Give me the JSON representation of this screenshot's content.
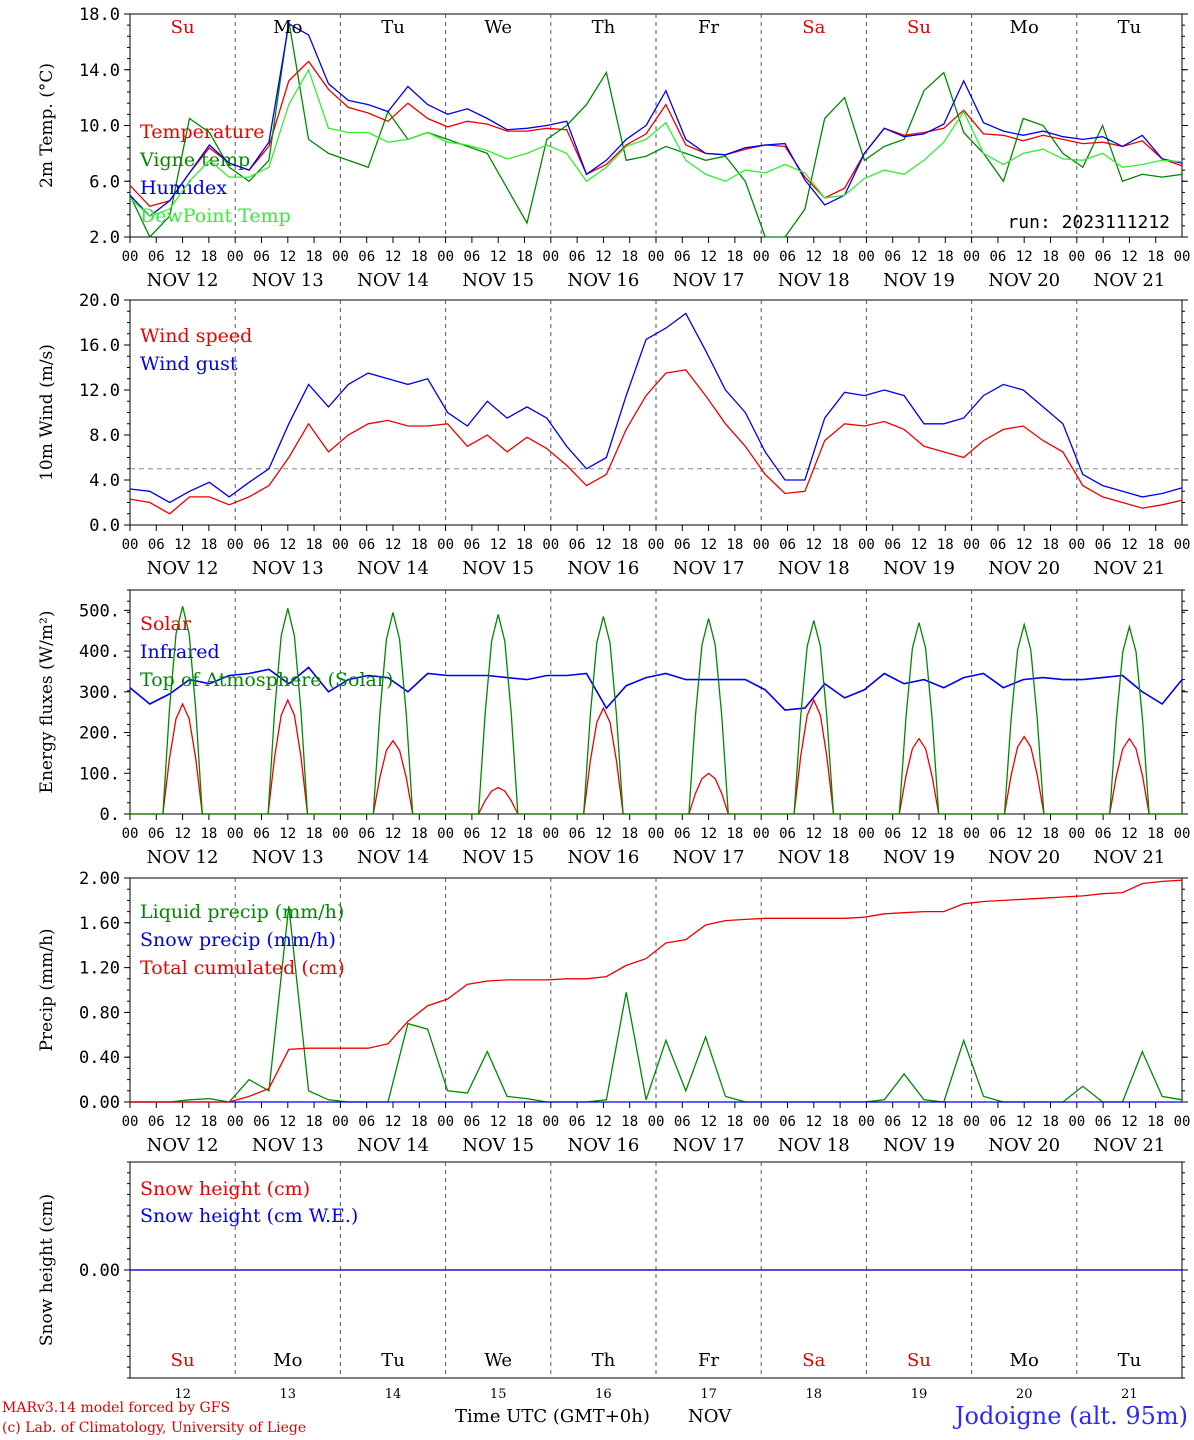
{
  "run_label": "run: 2023111212",
  "footer": {
    "credit_line1": "MARv3.14 model forced by GFS",
    "credit_line2": "(c) Lab. of Climatology, University of Liege",
    "x_title": "Time UTC (GMT+0h)",
    "month": "NOV",
    "station": "Jodoigne (alt. 95m)"
  },
  "days": {
    "date_labels": [
      "NOV 12",
      "NOV 13",
      "NOV 14",
      "NOV 15",
      "NOV 16",
      "NOV 17",
      "NOV 18",
      "NOV 19",
      "NOV 20",
      "NOV 21"
    ],
    "weekday_labels": [
      "Su",
      "Mo",
      "Tu",
      "We",
      "Th",
      "Fr",
      "Sa",
      "Su",
      "Mo",
      "Tu"
    ],
    "weekday_colors": [
      "#e00000",
      "#000000",
      "#000000",
      "#000000",
      "#000000",
      "#000000",
      "#e00000",
      "#e00000",
      "#000000",
      "#000000"
    ],
    "day_numbers": [
      "12",
      "13",
      "14",
      "15",
      "16",
      "17",
      "18",
      "19",
      "20",
      "21"
    ],
    "hour_ticks": [
      "00",
      "06",
      "12",
      "18"
    ],
    "final_tick": "00"
  },
  "colors": {
    "red": "#ee0000",
    "blue": "#0000ee",
    "green": "#008800",
    "lightgreen": "#33ee33",
    "grid": "#666666"
  },
  "chart_data": [
    {
      "type": "line",
      "ylabel": "2m Temp. (°C)",
      "ylim": [
        2,
        18
      ],
      "yticks": [
        "2.0",
        "6.0",
        "10.0",
        "14.0",
        "18.0"
      ],
      "x_hours_step": 6,
      "series": [
        {
          "name": "Temperature",
          "color": "#ee0000",
          "values": [
            5.7,
            4.2,
            4.6,
            6.6,
            8.4,
            7.3,
            6.8,
            8.5,
            13.2,
            14.6,
            12.6,
            11.3,
            10.9,
            10.3,
            11.6,
            10.5,
            9.9,
            10.3,
            10.1,
            9.6,
            9.6,
            9.8,
            9.7,
            6.5,
            7.2,
            8.6,
            9.4,
            11.5,
            8.6,
            8.0,
            7.9,
            8.3,
            8.6,
            8.5,
            6.3,
            4.8,
            5.5,
            8.0,
            9.8,
            9.3,
            9.5,
            9.8,
            11.1,
            9.4,
            9.3,
            8.9,
            9.3,
            9.0,
            8.7,
            8.8,
            8.5,
            8.9,
            7.6,
            7.1
          ]
        },
        {
          "name": "Vigne temp",
          "color": "#008800",
          "values": [
            5.0,
            2.0,
            3.5,
            10.5,
            9.5,
            7.0,
            6.0,
            7.5,
            17.5,
            9.0,
            8.0,
            7.5,
            7.0,
            11.0,
            9.0,
            9.5,
            9.0,
            8.5,
            8.0,
            5.5,
            3.0,
            9.0,
            10.0,
            11.5,
            13.8,
            7.5,
            7.8,
            8.5,
            8.0,
            7.5,
            7.8,
            6.0,
            2.0,
            2.0,
            4.0,
            10.5,
            12.0,
            7.5,
            8.5,
            9.0,
            12.5,
            13.8,
            9.5,
            8.0,
            6.0,
            10.5,
            10.0,
            8.0,
            7.0,
            10.0,
            6.0,
            6.5,
            6.3,
            6.5
          ]
        },
        {
          "name": "Humidex",
          "color": "#0000ee",
          "values": [
            5.0,
            3.5,
            4.6,
            6.6,
            8.6,
            7.3,
            6.8,
            8.8,
            17.3,
            16.5,
            13.0,
            11.8,
            11.5,
            11.0,
            12.8,
            11.5,
            10.8,
            11.2,
            10.5,
            9.7,
            9.8,
            10.0,
            10.3,
            6.5,
            7.5,
            9.0,
            10.0,
            12.5,
            9.0,
            8.0,
            7.9,
            8.4,
            8.6,
            8.7,
            6.1,
            4.3,
            5.0,
            8.0,
            9.8,
            9.2,
            9.4,
            10.1,
            13.2,
            10.2,
            9.6,
            9.3,
            9.6,
            9.2,
            9.0,
            9.2,
            8.5,
            9.3,
            7.6,
            7.3
          ]
        },
        {
          "name": "DewPoint Temp",
          "color": "#33ee33",
          "values": [
            4.8,
            3.5,
            4.0,
            6.0,
            7.5,
            6.3,
            6.3,
            7.0,
            11.5,
            14.0,
            9.8,
            9.5,
            9.5,
            8.8,
            9.0,
            9.5,
            8.8,
            8.6,
            8.2,
            7.6,
            8.0,
            8.6,
            8.0,
            6.0,
            7.0,
            8.5,
            9.0,
            10.2,
            7.5,
            6.5,
            6.0,
            6.8,
            6.6,
            7.2,
            6.6,
            4.8,
            5.0,
            6.2,
            6.8,
            6.5,
            7.5,
            8.8,
            11.0,
            8.0,
            7.2,
            8.0,
            8.3,
            7.6,
            7.5,
            8.0,
            7.0,
            7.2,
            7.5,
            7.4
          ]
        }
      ]
    },
    {
      "type": "line",
      "ylabel": "10m Wind (m/s)",
      "ylim": [
        0,
        20
      ],
      "yticks": [
        "0.0",
        "4.0",
        "8.0",
        "12.0",
        "16.0",
        "20.0"
      ],
      "reference_line": 5.0,
      "x_hours_step": 6,
      "series": [
        {
          "name": "Wind speed",
          "color": "#ee0000",
          "values": [
            2.3,
            2.0,
            1.0,
            2.5,
            2.5,
            1.8,
            2.5,
            3.5,
            6.0,
            9.0,
            6.5,
            8.0,
            9.0,
            9.3,
            8.8,
            8.8,
            9.0,
            7.0,
            8.0,
            6.5,
            7.8,
            6.8,
            5.3,
            3.5,
            4.5,
            8.5,
            11.5,
            13.5,
            13.8,
            11.5,
            9.0,
            7.0,
            4.5,
            2.8,
            3.0,
            7.5,
            9.0,
            8.8,
            9.2,
            8.5,
            7.0,
            6.5,
            6.0,
            7.5,
            8.5,
            8.8,
            7.5,
            6.5,
            3.5,
            2.5,
            2.0,
            1.5,
            1.8,
            2.2
          ]
        },
        {
          "name": "Wind gust",
          "color": "#0000ee",
          "values": [
            3.2,
            3.0,
            2.0,
            3.0,
            3.8,
            2.5,
            3.8,
            5.0,
            9.0,
            12.5,
            10.5,
            12.5,
            13.5,
            13.0,
            12.5,
            13.0,
            10.0,
            8.8,
            11.0,
            9.5,
            10.5,
            9.5,
            7.0,
            5.0,
            6.0,
            11.5,
            16.5,
            17.5,
            18.8,
            15.5,
            12.0,
            10.0,
            6.5,
            4.0,
            4.0,
            9.5,
            11.8,
            11.5,
            12.0,
            11.5,
            9.0,
            9.0,
            9.5,
            11.5,
            12.5,
            12.0,
            10.5,
            9.0,
            4.5,
            3.5,
            3.0,
            2.5,
            2.8,
            3.3
          ]
        }
      ]
    },
    {
      "type": "line",
      "ylabel": "Energy fluxes (W/m²)",
      "ylim": [
        0,
        550
      ],
      "yticks": [
        "0.",
        "100.",
        "200.",
        "300.",
        "400.",
        "500."
      ],
      "x_hours_step": 3,
      "series": [
        {
          "name": "Solar",
          "color": "#ee0000",
          "pattern": "diurnal",
          "peaks": [
            270,
            280,
            180,
            65,
            260,
            100,
            280,
            185,
            190,
            185
          ]
        },
        {
          "name": "Infrared",
          "color": "#0000ee",
          "values": [
            310,
            270,
            295,
            330,
            320,
            340,
            345,
            355,
            320,
            360,
            300,
            330,
            340,
            335,
            300,
            345,
            340,
            340,
            340,
            335,
            330,
            340,
            340,
            345,
            260,
            315,
            335,
            345,
            330,
            330,
            330,
            330,
            305,
            255,
            260,
            320,
            285,
            305,
            345,
            320,
            330,
            310,
            335,
            345,
            310,
            330,
            335,
            330,
            330,
            335,
            340,
            300,
            270,
            330
          ]
        },
        {
          "name": "Top of Atmosphere (Solar)",
          "color": "#008800",
          "pattern": "diurnal",
          "peaks": [
            510,
            505,
            495,
            490,
            485,
            480,
            475,
            470,
            465,
            460
          ]
        }
      ]
    },
    {
      "type": "line",
      "ylabel": "Precip (mm/h)",
      "ylim": [
        0,
        2
      ],
      "yticks": [
        "0.00",
        "0.40",
        "0.80",
        "1.20",
        "1.60",
        "2.00"
      ],
      "x_hours_step": 6,
      "series": [
        {
          "name": "Liquid precip (mm/h)",
          "color": "#008800",
          "values": [
            0,
            0,
            0,
            0.02,
            0.03,
            0,
            0.2,
            0.1,
            1.75,
            0.1,
            0.02,
            0,
            0,
            0,
            0.7,
            0.65,
            0.1,
            0.08,
            0.45,
            0.05,
            0.03,
            0,
            0,
            0,
            0.02,
            0.98,
            0.02,
            0.55,
            0.1,
            0.58,
            0.05,
            0,
            0,
            0,
            0,
            0,
            0,
            0,
            0.02,
            0.25,
            0.02,
            0,
            0.55,
            0.05,
            0,
            0,
            0,
            0,
            0.14,
            0,
            0,
            0.45,
            0.05,
            0.02
          ]
        },
        {
          "name": "Snow precip (mm/h)",
          "color": "#0000ee",
          "values": [
            0,
            0,
            0,
            0,
            0,
            0,
            0,
            0,
            0,
            0,
            0,
            0,
            0,
            0,
            0,
            0,
            0,
            0,
            0,
            0,
            0,
            0,
            0,
            0,
            0,
            0,
            0,
            0,
            0,
            0,
            0,
            0,
            0,
            0,
            0,
            0,
            0,
            0,
            0,
            0,
            0,
            0,
            0,
            0,
            0,
            0,
            0,
            0,
            0,
            0,
            0,
            0,
            0,
            0
          ]
        },
        {
          "name": "Total cumulated (cm)",
          "color": "#ee0000",
          "values": [
            0,
            0,
            0,
            0,
            0,
            0,
            0.05,
            0.12,
            0.47,
            0.48,
            0.48,
            0.48,
            0.48,
            0.52,
            0.72,
            0.86,
            0.92,
            1.05,
            1.08,
            1.09,
            1.09,
            1.09,
            1.1,
            1.1,
            1.12,
            1.22,
            1.28,
            1.42,
            1.45,
            1.58,
            1.62,
            1.63,
            1.64,
            1.64,
            1.64,
            1.64,
            1.64,
            1.65,
            1.68,
            1.69,
            1.7,
            1.7,
            1.77,
            1.79,
            1.8,
            1.81,
            1.82,
            1.83,
            1.84,
            1.86,
            1.87,
            1.95,
            1.97,
            1.98
          ]
        }
      ]
    },
    {
      "type": "line",
      "ylabel": "Snow height (cm)",
      "ylim": [
        -1,
        1
      ],
      "yticks": [
        "0.00"
      ],
      "x_hours_step": 6,
      "series": [
        {
          "name": "Snow height (cm)",
          "color": "#ee0000",
          "values": [
            0,
            0,
            0,
            0,
            0,
            0,
            0,
            0,
            0,
            0,
            0,
            0,
            0,
            0,
            0,
            0,
            0,
            0,
            0,
            0,
            0,
            0,
            0,
            0,
            0,
            0,
            0,
            0,
            0,
            0,
            0,
            0,
            0,
            0,
            0,
            0,
            0,
            0,
            0,
            0,
            0,
            0,
            0,
            0,
            0,
            0,
            0,
            0,
            0,
            0,
            0,
            0,
            0,
            0
          ]
        },
        {
          "name": "Snow height (cm W.E.)",
          "color": "#0000ee",
          "values": [
            0,
            0,
            0,
            0,
            0,
            0,
            0,
            0,
            0,
            0,
            0,
            0,
            0,
            0,
            0,
            0,
            0,
            0,
            0,
            0,
            0,
            0,
            0,
            0,
            0,
            0,
            0,
            0,
            0,
            0,
            0,
            0,
            0,
            0,
            0,
            0,
            0,
            0,
            0,
            0,
            0,
            0,
            0,
            0,
            0,
            0,
            0,
            0,
            0,
            0,
            0,
            0,
            0,
            0
          ]
        }
      ]
    }
  ]
}
